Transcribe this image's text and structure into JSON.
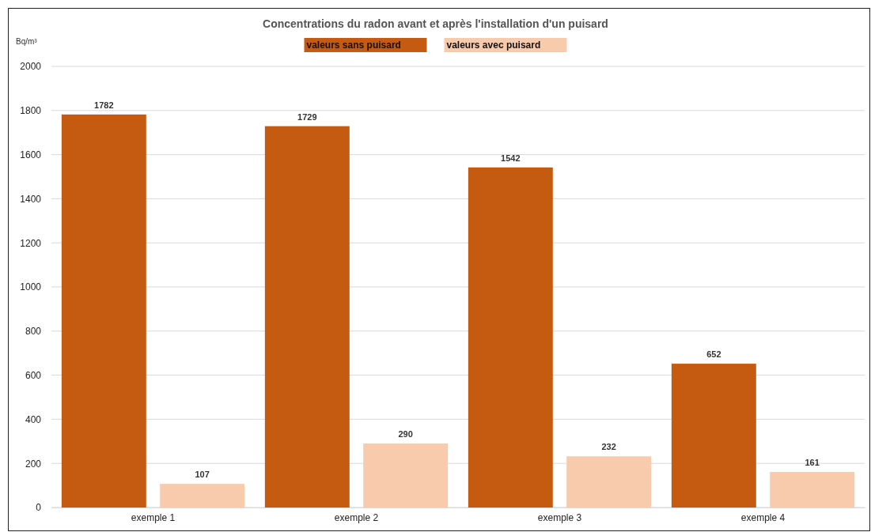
{
  "chart_data": {
    "type": "bar",
    "title": "Concentrations du radon avant et après l'installation d'un puisard",
    "ylabel": "Bq/m³",
    "categories": [
      "exemple 1",
      "exemple 2",
      "exemple 3",
      "exemple 4"
    ],
    "series": [
      {
        "name": "valeurs sans puisard",
        "color": "#c55a11",
        "values": [
          1782,
          1729,
          1542,
          652
        ]
      },
      {
        "name": "valeurs avec puisard",
        "color": "#f8cbad",
        "values": [
          107,
          290,
          232,
          161
        ]
      }
    ],
    "ylim": [
      0,
      2000
    ],
    "yticks": [
      0,
      200,
      400,
      600,
      800,
      1000,
      1200,
      1400,
      1600,
      1800,
      2000
    ],
    "grid": "y",
    "legend": "top",
    "data_labels": true
  }
}
